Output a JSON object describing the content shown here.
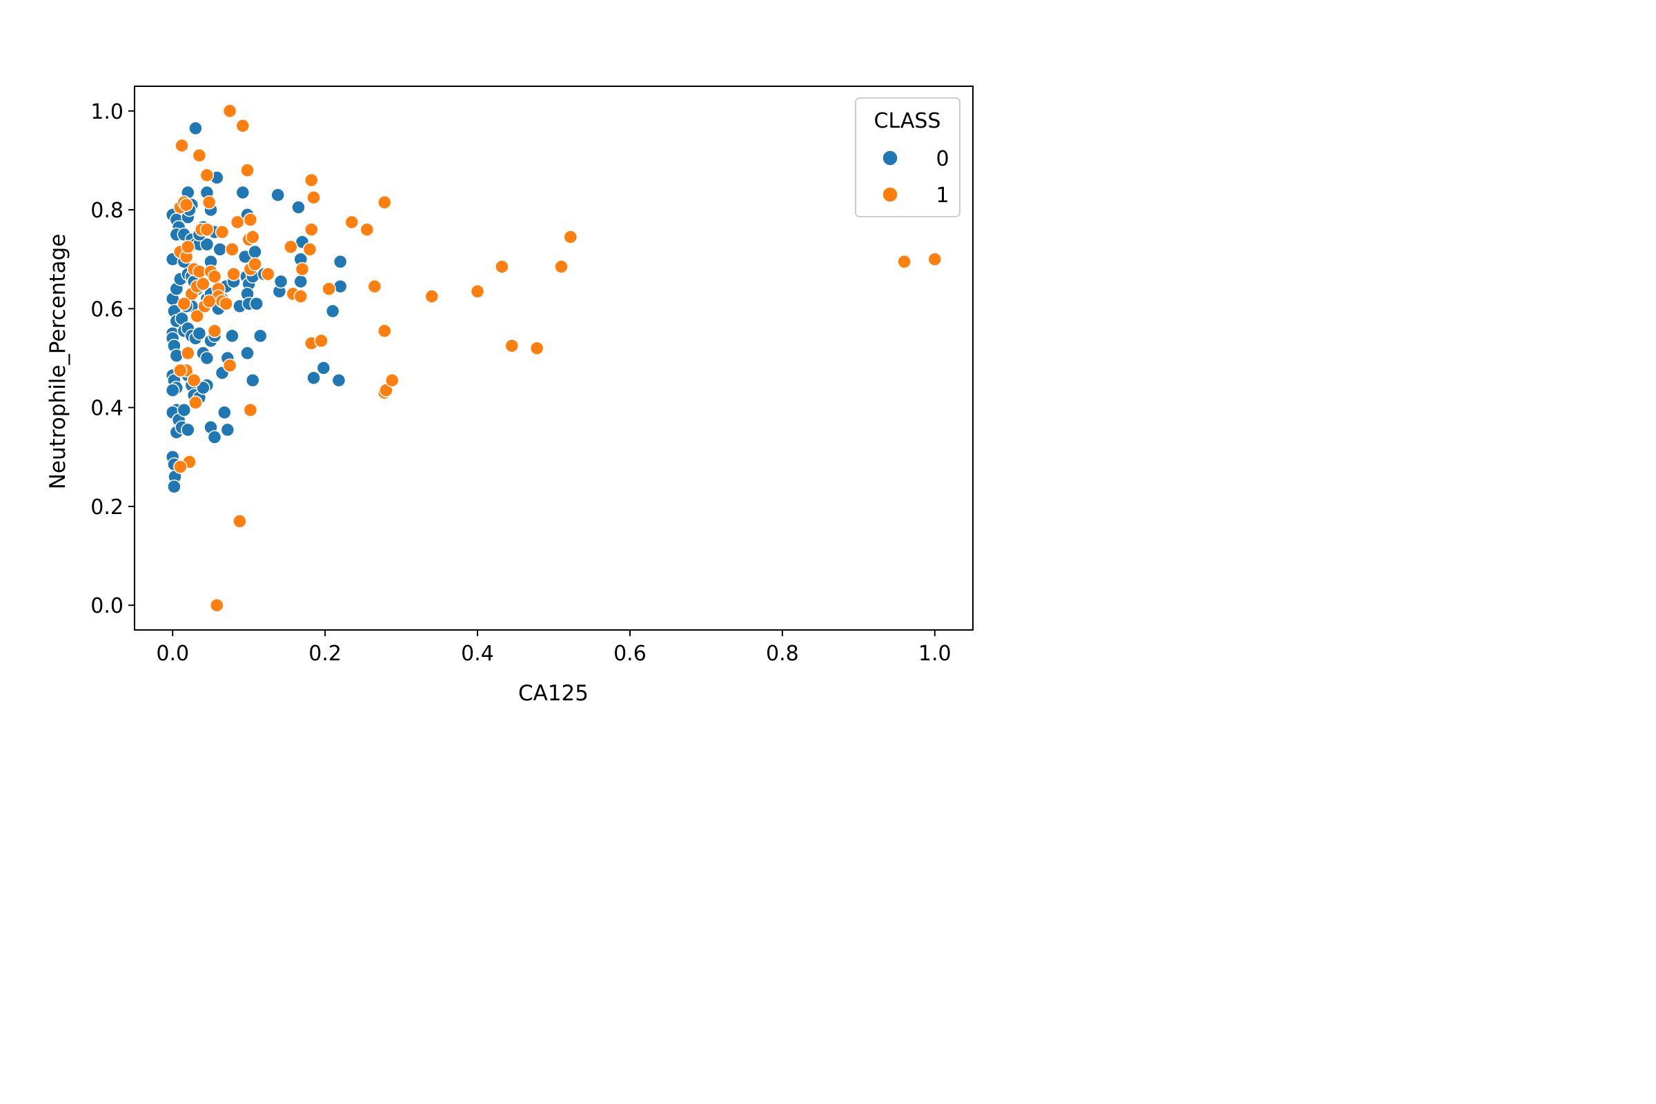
{
  "chart_data": {
    "type": "scatter",
    "title": "",
    "xlabel": "CA125",
    "ylabel": "Neutrophile_Percentage",
    "xlim": [
      -0.05,
      1.05
    ],
    "ylim": [
      -0.05,
      1.05
    ],
    "xticks": [
      "0.0",
      "0.2",
      "0.4",
      "0.6",
      "0.8",
      "1.0"
    ],
    "yticks": [
      "0.0",
      "0.2",
      "0.4",
      "0.6",
      "0.8",
      "1.0"
    ],
    "grid": false,
    "legend": {
      "title": "CLASS",
      "placement": "top-right"
    },
    "series": [
      {
        "name": "0",
        "color": "#1f77b4",
        "points": [
          [
            0.0,
            0.79
          ],
          [
            0.005,
            0.78
          ],
          [
            0.008,
            0.765
          ],
          [
            0.005,
            0.75
          ],
          [
            0.0,
            0.7
          ],
          [
            0.0,
            0.62
          ],
          [
            0.005,
            0.64
          ],
          [
            0.002,
            0.595
          ],
          [
            0.005,
            0.575
          ],
          [
            0.0,
            0.55
          ],
          [
            0.0,
            0.54
          ],
          [
            0.002,
            0.525
          ],
          [
            0.005,
            0.505
          ],
          [
            0.0,
            0.465
          ],
          [
            0.002,
            0.455
          ],
          [
            0.005,
            0.44
          ],
          [
            0.0,
            0.435
          ],
          [
            0.005,
            0.395
          ],
          [
            0.0,
            0.39
          ],
          [
            0.008,
            0.375
          ],
          [
            0.005,
            0.35
          ],
          [
            0.0,
            0.3
          ],
          [
            0.002,
            0.285
          ],
          [
            0.003,
            0.26
          ],
          [
            0.002,
            0.24
          ],
          [
            0.02,
            0.835
          ],
          [
            0.03,
            0.965
          ],
          [
            0.025,
            0.81
          ],
          [
            0.02,
            0.785
          ],
          [
            0.022,
            0.8
          ],
          [
            0.015,
            0.75
          ],
          [
            0.025,
            0.74
          ],
          [
            0.03,
            0.73
          ],
          [
            0.035,
            0.73
          ],
          [
            0.04,
            0.765
          ],
          [
            0.045,
            0.73
          ],
          [
            0.035,
            0.75
          ],
          [
            0.045,
            0.835
          ],
          [
            0.05,
            0.8
          ],
          [
            0.058,
            0.865
          ],
          [
            0.055,
            0.755
          ],
          [
            0.062,
            0.72
          ],
          [
            0.01,
            0.66
          ],
          [
            0.015,
            0.695
          ],
          [
            0.02,
            0.67
          ],
          [
            0.025,
            0.665
          ],
          [
            0.028,
            0.655
          ],
          [
            0.032,
            0.64
          ],
          [
            0.025,
            0.605
          ],
          [
            0.018,
            0.605
          ],
          [
            0.012,
            0.58
          ],
          [
            0.015,
            0.555
          ],
          [
            0.02,
            0.56
          ],
          [
            0.025,
            0.545
          ],
          [
            0.03,
            0.54
          ],
          [
            0.035,
            0.55
          ],
          [
            0.04,
            0.51
          ],
          [
            0.045,
            0.5
          ],
          [
            0.05,
            0.535
          ],
          [
            0.055,
            0.545
          ],
          [
            0.045,
            0.62
          ],
          [
            0.05,
            0.63
          ],
          [
            0.05,
            0.695
          ],
          [
            0.06,
            0.6
          ],
          [
            0.065,
            0.62
          ],
          [
            0.02,
            0.465
          ],
          [
            0.025,
            0.445
          ],
          [
            0.028,
            0.425
          ],
          [
            0.035,
            0.42
          ],
          [
            0.045,
            0.445
          ],
          [
            0.04,
            0.44
          ],
          [
            0.015,
            0.395
          ],
          [
            0.012,
            0.36
          ],
          [
            0.02,
            0.355
          ],
          [
            0.05,
            0.36
          ],
          [
            0.055,
            0.34
          ],
          [
            0.068,
            0.39
          ],
          [
            0.072,
            0.355
          ],
          [
            0.065,
            0.47
          ],
          [
            0.072,
            0.5
          ],
          [
            0.07,
            0.645
          ],
          [
            0.08,
            0.655
          ],
          [
            0.078,
            0.545
          ],
          [
            0.088,
            0.605
          ],
          [
            0.092,
            0.835
          ],
          [
            0.098,
            0.79
          ],
          [
            0.095,
            0.705
          ],
          [
            0.097,
            0.665
          ],
          [
            0.1,
            0.65
          ],
          [
            0.098,
            0.63
          ],
          [
            0.1,
            0.61
          ],
          [
            0.105,
            0.665
          ],
          [
            0.108,
            0.715
          ],
          [
            0.11,
            0.61
          ],
          [
            0.098,
            0.51
          ],
          [
            0.105,
            0.455
          ],
          [
            0.115,
            0.545
          ],
          [
            0.12,
            0.67
          ],
          [
            0.138,
            0.83
          ],
          [
            0.14,
            0.635
          ],
          [
            0.142,
            0.655
          ],
          [
            0.165,
            0.805
          ],
          [
            0.168,
            0.7
          ],
          [
            0.17,
            0.735
          ],
          [
            0.168,
            0.655
          ],
          [
            0.185,
            0.46
          ],
          [
            0.198,
            0.48
          ],
          [
            0.21,
            0.595
          ],
          [
            0.218,
            0.455
          ],
          [
            0.22,
            0.645
          ],
          [
            0.22,
            0.695
          ]
        ]
      },
      {
        "name": "1",
        "color": "#ff7f0e",
        "points": [
          [
            0.012,
            0.93
          ],
          [
            0.035,
            0.91
          ],
          [
            0.045,
            0.87
          ],
          [
            0.075,
            1.0
          ],
          [
            0.092,
            0.97
          ],
          [
            0.098,
            0.88
          ],
          [
            0.01,
            0.805
          ],
          [
            0.015,
            0.815
          ],
          [
            0.018,
            0.81
          ],
          [
            0.048,
            0.815
          ],
          [
            0.01,
            0.715
          ],
          [
            0.018,
            0.705
          ],
          [
            0.02,
            0.725
          ],
          [
            0.028,
            0.68
          ],
          [
            0.038,
            0.76
          ],
          [
            0.045,
            0.76
          ],
          [
            0.035,
            0.675
          ],
          [
            0.025,
            0.63
          ],
          [
            0.015,
            0.61
          ],
          [
            0.032,
            0.645
          ],
          [
            0.04,
            0.65
          ],
          [
            0.05,
            0.675
          ],
          [
            0.055,
            0.665
          ],
          [
            0.06,
            0.64
          ],
          [
            0.06,
            0.625
          ],
          [
            0.065,
            0.615
          ],
          [
            0.07,
            0.61
          ],
          [
            0.032,
            0.585
          ],
          [
            0.042,
            0.605
          ],
          [
            0.048,
            0.615
          ],
          [
            0.055,
            0.555
          ],
          [
            0.02,
            0.51
          ],
          [
            0.018,
            0.475
          ],
          [
            0.028,
            0.455
          ],
          [
            0.03,
            0.41
          ],
          [
            0.01,
            0.475
          ],
          [
            0.065,
            0.755
          ],
          [
            0.078,
            0.72
          ],
          [
            0.085,
            0.775
          ],
          [
            0.08,
            0.67
          ],
          [
            0.1,
            0.74
          ],
          [
            0.102,
            0.78
          ],
          [
            0.105,
            0.745
          ],
          [
            0.102,
            0.68
          ],
          [
            0.108,
            0.69
          ],
          [
            0.125,
            0.67
          ],
          [
            0.075,
            0.485
          ],
          [
            0.102,
            0.395
          ],
          [
            0.088,
            0.17
          ],
          [
            0.058,
            0.0
          ],
          [
            0.022,
            0.29
          ],
          [
            0.01,
            0.28
          ],
          [
            0.155,
            0.725
          ],
          [
            0.158,
            0.63
          ],
          [
            0.168,
            0.625
          ],
          [
            0.17,
            0.68
          ],
          [
            0.182,
            0.86
          ],
          [
            0.185,
            0.825
          ],
          [
            0.182,
            0.76
          ],
          [
            0.18,
            0.72
          ],
          [
            0.182,
            0.53
          ],
          [
            0.195,
            0.535
          ],
          [
            0.205,
            0.64
          ],
          [
            0.235,
            0.775
          ],
          [
            0.255,
            0.76
          ],
          [
            0.265,
            0.645
          ],
          [
            0.278,
            0.815
          ],
          [
            0.278,
            0.555
          ],
          [
            0.278,
            0.43
          ],
          [
            0.28,
            0.435
          ],
          [
            0.288,
            0.455
          ],
          [
            0.34,
            0.625
          ],
          [
            0.4,
            0.635
          ],
          [
            0.432,
            0.685
          ],
          [
            0.445,
            0.525
          ],
          [
            0.478,
            0.52
          ],
          [
            0.51,
            0.685
          ],
          [
            0.522,
            0.745
          ],
          [
            0.96,
            0.695
          ],
          [
            1.0,
            0.7
          ]
        ]
      }
    ]
  }
}
